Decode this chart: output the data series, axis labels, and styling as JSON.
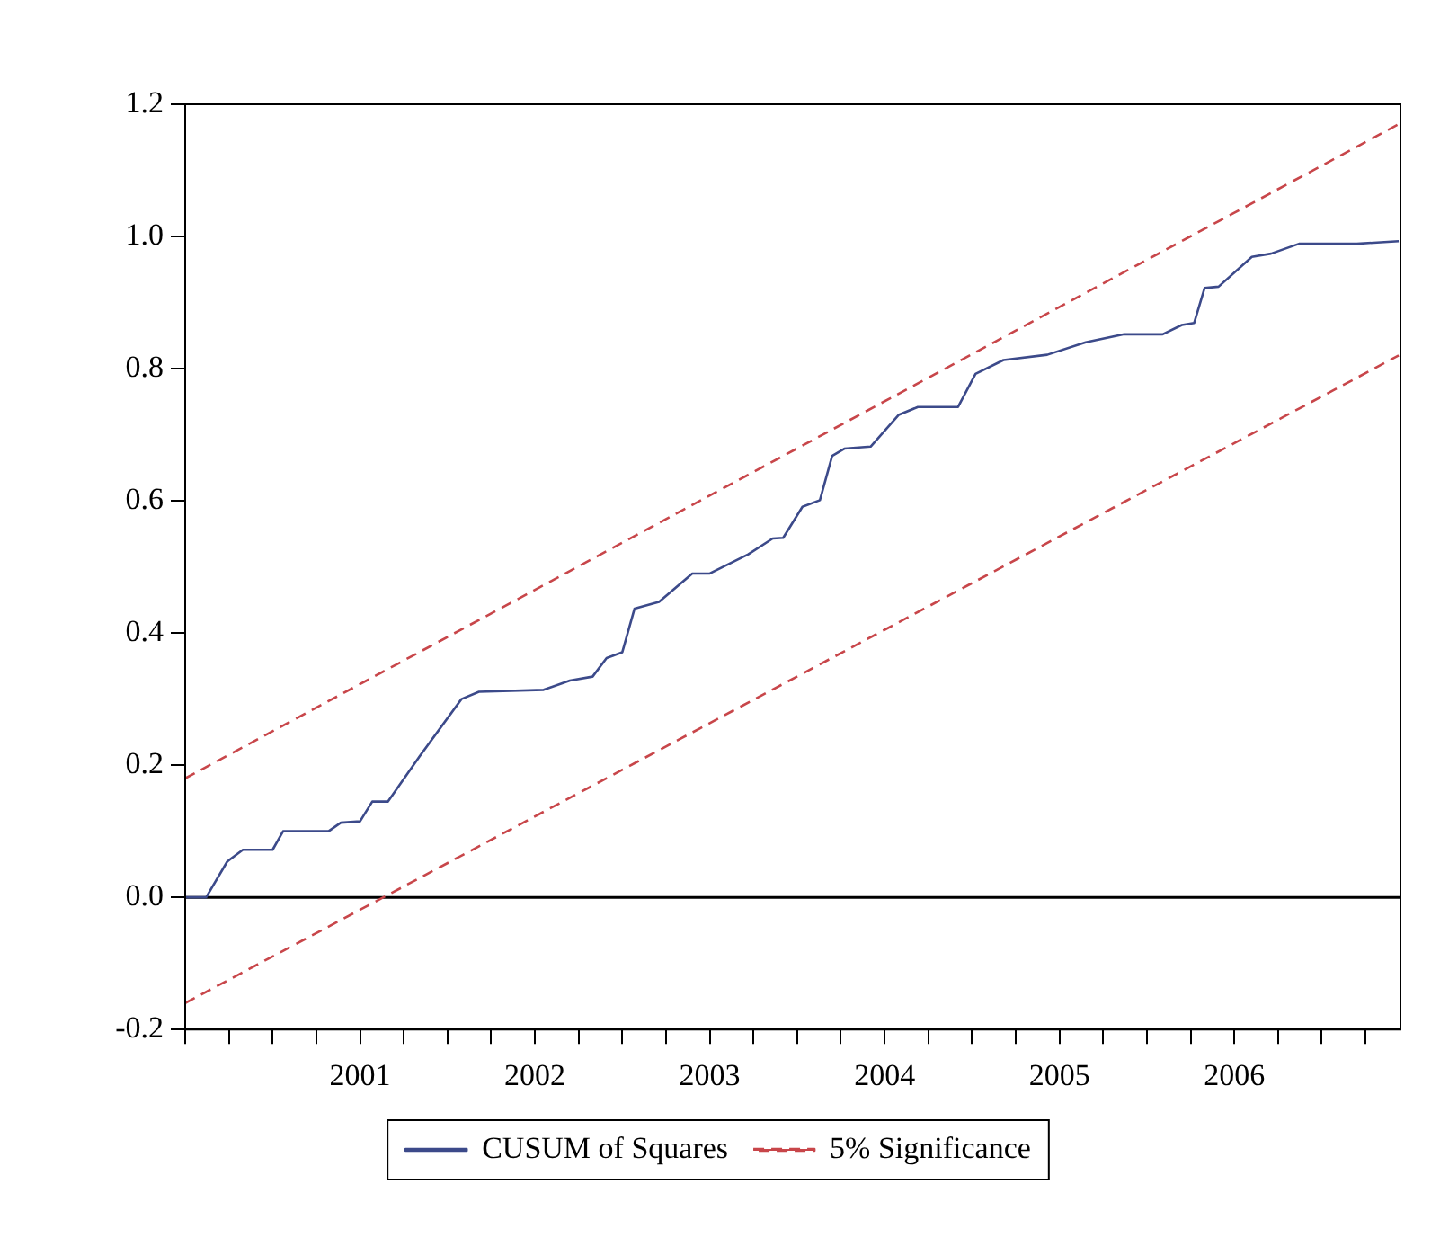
{
  "chart_data": {
    "type": "line",
    "legend": "bottom",
    "marker": "none",
    "grid": false,
    "xlim": [
      2000.5,
      2007.45
    ],
    "xticks": [
      {
        "value": 2000.5,
        "label": null
      },
      {
        "value": 2000.75,
        "label": null
      },
      {
        "value": 2001,
        "label": null
      },
      {
        "value": 2001.25,
        "label": null
      },
      {
        "value": 2001.5,
        "label": "2001"
      },
      {
        "value": 2001.75,
        "label": null
      },
      {
        "value": 2002,
        "label": null
      },
      {
        "value": 2002.25,
        "label": null
      },
      {
        "value": 2002.5,
        "label": "2002"
      },
      {
        "value": 2002.75,
        "label": null
      },
      {
        "value": 2003,
        "label": null
      },
      {
        "value": 2003.25,
        "label": null
      },
      {
        "value": 2003.5,
        "label": "2003"
      },
      {
        "value": 2003.75,
        "label": null
      },
      {
        "value": 2004,
        "label": null
      },
      {
        "value": 2004.25,
        "label": null
      },
      {
        "value": 2004.5,
        "label": "2004"
      },
      {
        "value": 2004.75,
        "label": null
      },
      {
        "value": 2005,
        "label": null
      },
      {
        "value": 2005.25,
        "label": null
      },
      {
        "value": 2005.5,
        "label": "2005"
      },
      {
        "value": 2005.75,
        "label": null
      },
      {
        "value": 2006,
        "label": null
      },
      {
        "value": 2006.25,
        "label": null
      },
      {
        "value": 2006.5,
        "label": "2006"
      },
      {
        "value": 2006.75,
        "label": null
      },
      {
        "value": 2007,
        "label": null
      },
      {
        "value": 2007.25,
        "label": null
      }
    ],
    "ylim": [
      -0.2,
      1.2
    ],
    "yticks": [
      -0.2,
      {
        "value": 0,
        "label": "0.0"
      },
      0.2,
      0.4,
      0.6,
      0.8,
      {
        "value": 1,
        "label": "1.0"
      },
      1.2
    ],
    "ref_lines": [
      {
        "axis": "y",
        "value": 0,
        "label": null,
        "color": "#000000"
      }
    ],
    "series": [
      {
        "name": "CUSUM of Squares",
        "color": "#3c4a8a",
        "line_style": "solid",
        "x": [
          2000.5,
          2000.62,
          2000.74,
          2000.83,
          2001.0,
          2001.06,
          2001.32,
          2001.39,
          2001.5,
          2001.57,
          2001.66,
          2001.84,
          2002.08,
          2002.18,
          2002.55,
          2002.7,
          2002.83,
          2002.91,
          2003.0,
          2003.07,
          2003.21,
          2003.4,
          2003.5,
          2003.72,
          2003.86,
          2003.92,
          2004.03,
          2004.13,
          2004.2,
          2004.27,
          2004.42,
          2004.58,
          2004.69,
          2004.92,
          2005.02,
          2005.18,
          2005.43,
          2005.65,
          2005.87,
          2006.09,
          2006.2,
          2006.27,
          2006.33,
          2006.41,
          2006.6,
          2006.71,
          2006.87,
          2007.2,
          2007.44
        ],
        "values": [
          0.0,
          0.0,
          0.054,
          0.072,
          0.072,
          0.1,
          0.1,
          0.113,
          0.115,
          0.145,
          0.145,
          0.213,
          0.3,
          0.311,
          0.314,
          0.328,
          0.334,
          0.362,
          0.371,
          0.437,
          0.447,
          0.49,
          0.49,
          0.519,
          0.543,
          0.544,
          0.591,
          0.601,
          0.668,
          0.679,
          0.682,
          0.73,
          0.742,
          0.742,
          0.792,
          0.813,
          0.821,
          0.84,
          0.852,
          0.852,
          0.866,
          0.869,
          0.922,
          0.924,
          0.969,
          0.974,
          0.989,
          0.989,
          0.993
        ]
      },
      {
        "name": "5% Significance",
        "color": "#c8464a",
        "line_style": "dashed",
        "x": [
          2000.5,
          2007.44
        ],
        "values": [
          0.18,
          1.17
        ]
      },
      {
        "color": "#c8464a",
        "line_style": "dashed",
        "x": [
          2000.5,
          2007.44
        ],
        "values": [
          -0.16,
          0.82
        ]
      }
    ]
  }
}
